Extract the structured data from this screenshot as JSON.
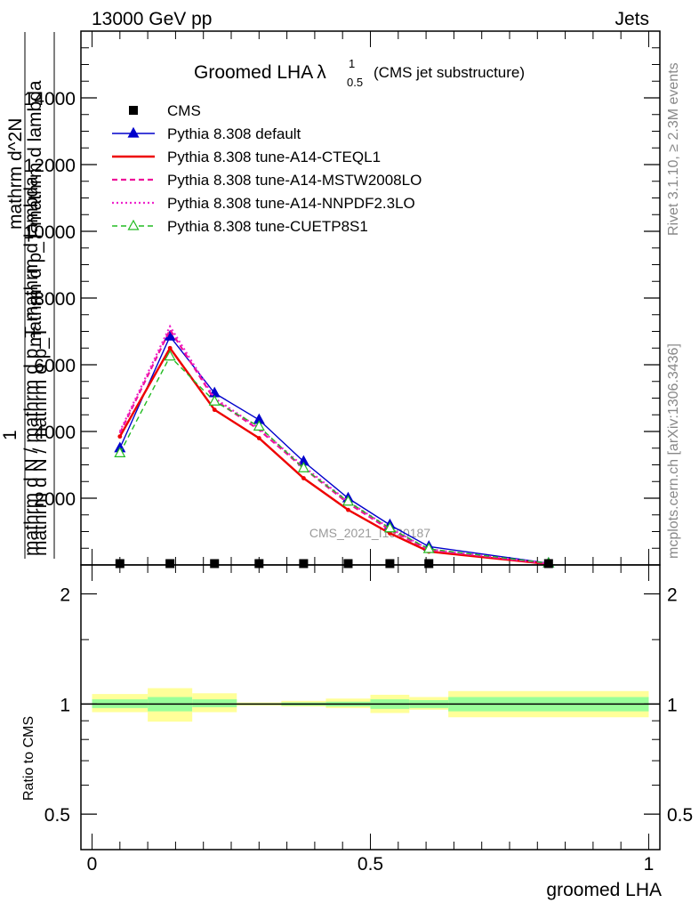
{
  "header": {
    "left": "13000 GeV pp",
    "right": "Jets"
  },
  "side_labels": {
    "rivet": "Rivet 3.1.10, ≥ 2.3M events",
    "mcplots": "mcplots.cern.ch [arXiv:1306.3436]"
  },
  "watermark": "CMS_2021_I1920187",
  "chart_data": [
    {
      "type": "line",
      "title": {
        "main": "Groomed LHA",
        "lambda": "λ",
        "sup": "1",
        "sub": "0.5",
        "suffix": "(CMS jet substructure)"
      },
      "ylabel": {
        "line1": "mathrm d N / mathrm d p_T mathrm d lambda",
        "line2": "1",
        "line3": "mathrm d N / mathrm d p_T",
        "line4": "mathrm d^2N",
        "line5": "mathrm d p_T mathrm d lambda"
      },
      "xlim": [
        -0.02,
        1.02
      ],
      "ylim": [
        0,
        16000
      ],
      "yticks": [
        "2000",
        "4000",
        "6000",
        "8000",
        "10000",
        "12000",
        "14000"
      ],
      "ytick_values": [
        2000,
        4000,
        6000,
        8000,
        10000,
        12000,
        14000
      ],
      "x": [
        0.05,
        0.14,
        0.22,
        0.3,
        0.38,
        0.46,
        0.535,
        0.605,
        0.82
      ],
      "series": [
        {
          "name": "CMS",
          "color": "#000000",
          "style": "data",
          "values": [
            0,
            0,
            0,
            0,
            0,
            0,
            0,
            0,
            0
          ]
        },
        {
          "name": "Pythia 8.308 default",
          "color": "#0000cc",
          "style": "solid-triangle",
          "values": [
            3500,
            6850,
            5150,
            4350,
            3100,
            2000,
            1200,
            550,
            50
          ]
        },
        {
          "name": "Pythia 8.308 tune-A14-CTEQL1",
          "color": "#ee0000",
          "style": "solid-thick",
          "values": [
            3850,
            6500,
            4650,
            3800,
            2600,
            1650,
            950,
            400,
            30
          ]
        },
        {
          "name": "Pythia 8.308 tune-A14-MSTW2008LO",
          "color": "#ee1199",
          "style": "dashed",
          "values": [
            3950,
            7050,
            4950,
            4050,
            2900,
            1850,
            1050,
            450,
            40
          ]
        },
        {
          "name": "Pythia 8.308 tune-A14-NNPDF2.3LO",
          "color": "#ee22cc",
          "style": "dotted",
          "values": [
            4000,
            7150,
            5000,
            4100,
            2950,
            1900,
            1100,
            470,
            40
          ]
        },
        {
          "name": "Pythia 8.308 tune-CUETP8S1",
          "color": "#22bb22",
          "style": "dashed-open-triangle",
          "values": [
            3350,
            6250,
            4900,
            4150,
            2900,
            1900,
            1100,
            480,
            50
          ]
        }
      ]
    },
    {
      "type": "area",
      "ylabel": "Ratio to CMS",
      "xlabel": "groomed LHA",
      "xticks": [
        "0",
        "0.5",
        "1"
      ],
      "xtick_values": [
        0,
        0.5,
        1
      ],
      "yticks": [
        "0.5",
        "1",
        "2"
      ],
      "ytick_values": [
        0.5,
        1,
        2
      ],
      "ylim": [
        0.4,
        2.4
      ],
      "log_scale": true,
      "bins": [
        {
          "lo": 0.0,
          "hi": 0.1,
          "stat": [
            0.975,
            1.03
          ],
          "total": [
            0.95,
            1.065
          ]
        },
        {
          "lo": 0.1,
          "hi": 0.18,
          "stat": [
            0.955,
            1.045
          ],
          "total": [
            0.895,
            1.105
          ]
        },
        {
          "lo": 0.18,
          "hi": 0.26,
          "stat": [
            0.98,
            1.03
          ],
          "total": [
            0.95,
            1.07
          ]
        },
        {
          "lo": 0.26,
          "hi": 0.34,
          "stat": [
            0.995,
            1.005
          ],
          "total": [
            0.99,
            1.01
          ]
        },
        {
          "lo": 0.34,
          "hi": 0.42,
          "stat": [
            0.99,
            1.01
          ],
          "total": [
            0.985,
            1.02
          ]
        },
        {
          "lo": 0.42,
          "hi": 0.5,
          "stat": [
            0.985,
            1.015
          ],
          "total": [
            0.975,
            1.035
          ]
        },
        {
          "lo": 0.5,
          "hi": 0.57,
          "stat": [
            0.97,
            1.03
          ],
          "total": [
            0.945,
            1.06
          ]
        },
        {
          "lo": 0.57,
          "hi": 0.64,
          "stat": [
            0.975,
            1.025
          ],
          "total": [
            0.965,
            1.045
          ]
        },
        {
          "lo": 0.64,
          "hi": 1.0,
          "stat": [
            0.955,
            1.045
          ],
          "total": [
            0.92,
            1.085
          ]
        }
      ]
    }
  ]
}
